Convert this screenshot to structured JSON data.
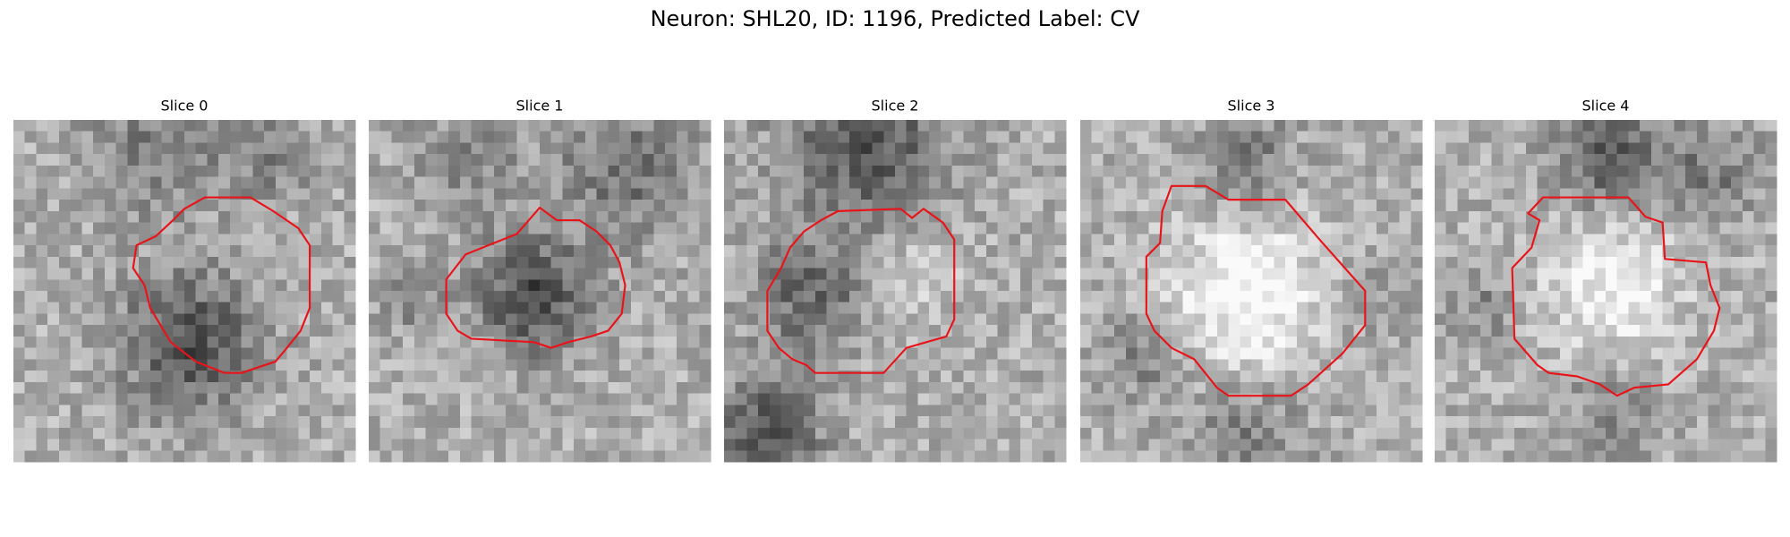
{
  "title": "Neuron: SHL20, ID: 1196, Predicted Label: CV",
  "panels": [
    {
      "label": "Slice 0"
    },
    {
      "label": "Slice 1"
    },
    {
      "label": "Slice 2"
    },
    {
      "label": "Slice 3"
    },
    {
      "label": "Slice 4"
    }
  ]
}
